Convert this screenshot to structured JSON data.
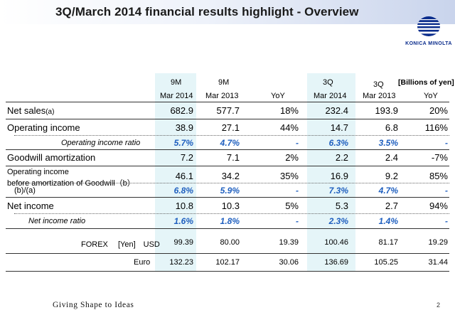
{
  "title": "3Q/March 2014 financial results highlight - Overview",
  "logo": {
    "text": "KONICA MINOLTA",
    "colors": {
      "primary": "#0a2c8c",
      "secondary": "#3a6fd8"
    }
  },
  "unit": "[Billions of yen]",
  "columns": {
    "c1": {
      "top": "9M",
      "bottom": "Mar 2014"
    },
    "c2": {
      "top": "9M",
      "bottom": "Mar 2013"
    },
    "c3": {
      "top": "",
      "bottom": "YoY"
    },
    "c4": {
      "top": "3Q",
      "bottom": "Mar 2014"
    },
    "c5": {
      "top": "3Q",
      "bottom": "Mar 2013"
    },
    "c6": {
      "top": "",
      "bottom": "YoY"
    }
  },
  "rows": {
    "net_sales": {
      "label": "Net sales",
      "suffix": "(a)",
      "values": [
        "682.9",
        "577.7",
        "18%",
        "232.4",
        "193.9",
        "20%"
      ]
    },
    "operating_income": {
      "label": "Operating income",
      "values": [
        "38.9",
        "27.1",
        "44%",
        "14.7",
        "6.8",
        "116%"
      ]
    },
    "operating_income_ratio": {
      "label": "Operating income ratio",
      "values": [
        "5.7%",
        "4.7%",
        "-",
        "6.3%",
        "3.5%",
        "-"
      ]
    },
    "goodwill_amortization": {
      "label": "Goodwill amortization",
      "values": [
        "7.2",
        "7.1",
        "2%",
        "2.2",
        "2.4",
        "-7%"
      ]
    },
    "oi_before_goodwill": {
      "label_line1": "Operating income",
      "label_line2": "before amortization of Goodwill（b）",
      "values": [
        "46.1",
        "34.2",
        "35%",
        "16.9",
        "9.2",
        "85%"
      ]
    },
    "b_over_a": {
      "label": "(b)/(a)",
      "values": [
        "6.8%",
        "5.9%",
        "-",
        "7.3%",
        "4.7%",
        "-"
      ]
    },
    "net_income": {
      "label": "Net income",
      "values": [
        "10.8",
        "10.3",
        "5%",
        "5.3",
        "2.7",
        "94%"
      ]
    },
    "net_income_ratio": {
      "label": "Net income ratio",
      "values": [
        "1.6%",
        "1.8%",
        "-",
        "2.3%",
        "1.4%",
        "-"
      ]
    },
    "forex_usd": {
      "label": "FOREX 　[Yen]　USD",
      "values": [
        "99.39",
        "80.00",
        "19.39",
        "100.46",
        "81.17",
        "19.29"
      ]
    },
    "forex_euro": {
      "label": "Euro",
      "values": [
        "132.23",
        "102.17",
        "30.06",
        "136.69",
        "105.25",
        "31.44"
      ]
    }
  },
  "footer": {
    "tagline": "Giving Shape to Ideas",
    "page_number": "2"
  }
}
